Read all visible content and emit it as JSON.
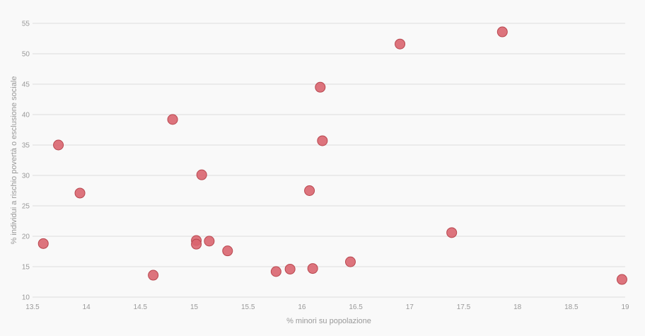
{
  "chart_data": {
    "type": "scatter",
    "title": "",
    "xlabel": "% minori su popolazione",
    "ylabel": "% individui a rischio povertà o esclusione sociale",
    "xlim": [
      13.5,
      19
    ],
    "ylim": [
      10,
      55
    ],
    "x_ticks": [
      13.5,
      14,
      14.5,
      15,
      15.5,
      16,
      16.5,
      17,
      17.5,
      18,
      18.5,
      19
    ],
    "x_tick_labels": [
      "13.5",
      "14",
      "14.5",
      "15",
      "15.5",
      "16",
      "16.5",
      "17",
      "17.5",
      "18",
      "18.5",
      "19"
    ],
    "y_ticks": [
      10,
      15,
      20,
      25,
      30,
      35,
      40,
      45,
      50,
      55
    ],
    "y_tick_labels": [
      "10",
      "15",
      "20",
      "25",
      "30",
      "35",
      "40",
      "45",
      "50",
      "55"
    ],
    "grid": "horizontal",
    "legend": "none",
    "point_color": "#d9656f",
    "point_stroke": "#b8474f",
    "points": [
      {
        "x": 13.6,
        "y": 18.8
      },
      {
        "x": 13.74,
        "y": 35
      },
      {
        "x": 13.94,
        "y": 27.1
      },
      {
        "x": 14.62,
        "y": 13.6
      },
      {
        "x": 14.8,
        "y": 39.2
      },
      {
        "x": 15.02,
        "y": 19.3
      },
      {
        "x": 15.02,
        "y": 18.7
      },
      {
        "x": 15.07,
        "y": 30.1
      },
      {
        "x": 15.14,
        "y": 19.2
      },
      {
        "x": 15.31,
        "y": 17.6
      },
      {
        "x": 15.76,
        "y": 14.2
      },
      {
        "x": 15.89,
        "y": 14.6
      },
      {
        "x": 16.07,
        "y": 27.5
      },
      {
        "x": 16.1,
        "y": 14.7
      },
      {
        "x": 16.17,
        "y": 44.5
      },
      {
        "x": 16.19,
        "y": 35.7
      },
      {
        "x": 16.45,
        "y": 15.8
      },
      {
        "x": 16.91,
        "y": 51.6
      },
      {
        "x": 17.39,
        "y": 20.6
      },
      {
        "x": 17.86,
        "y": 53.6
      },
      {
        "x": 18.97,
        "y": 12.9
      }
    ]
  }
}
